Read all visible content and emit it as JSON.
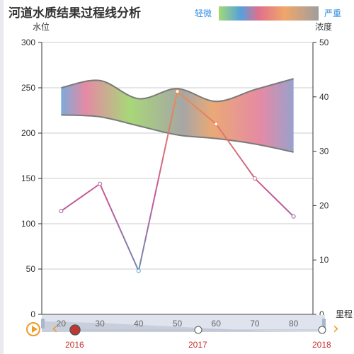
{
  "title": "河道水质结果过程线分析",
  "legend": {
    "low_label": "轻微",
    "high_label": "严重"
  },
  "colors": {
    "axis": "#333333",
    "grid": "#cccccc",
    "slider_bg": "#dfe3ee",
    "accent": "#f29a26",
    "year_text": "#c23531"
  },
  "chart_data": {
    "type": "line",
    "xlabel": "里程",
    "ylabel_left": "水位",
    "ylabel_right": "浓度",
    "x": [
      20,
      30,
      40,
      50,
      60,
      70,
      80
    ],
    "xlim": [
      15,
      85
    ],
    "ylim_left": [
      0,
      300
    ],
    "ylim_right": [
      0,
      50
    ],
    "yticks_left": [
      0,
      50,
      100,
      150,
      200,
      250,
      300
    ],
    "yticks_right": [
      0,
      10,
      20,
      30,
      40,
      50
    ],
    "xticks": [
      20,
      30,
      40,
      50,
      60,
      70,
      80
    ],
    "grid": true,
    "band_upper": [
      [
        20,
        250
      ],
      [
        30,
        258
      ],
      [
        40,
        238
      ],
      [
        50,
        249
      ],
      [
        60,
        235
      ],
      [
        70,
        248
      ],
      [
        80,
        260
      ]
    ],
    "band_lower": [
      [
        20,
        220
      ],
      [
        30,
        218
      ],
      [
        40,
        208
      ],
      [
        50,
        198
      ],
      [
        60,
        194
      ],
      [
        70,
        188
      ],
      [
        80,
        179
      ]
    ],
    "series": [
      {
        "values": [
          19,
          24,
          8,
          41,
          35,
          25,
          18
        ]
      }
    ]
  },
  "timeline": {
    "years": [
      "2016",
      "2017",
      "2018"
    ],
    "current": "2016"
  }
}
